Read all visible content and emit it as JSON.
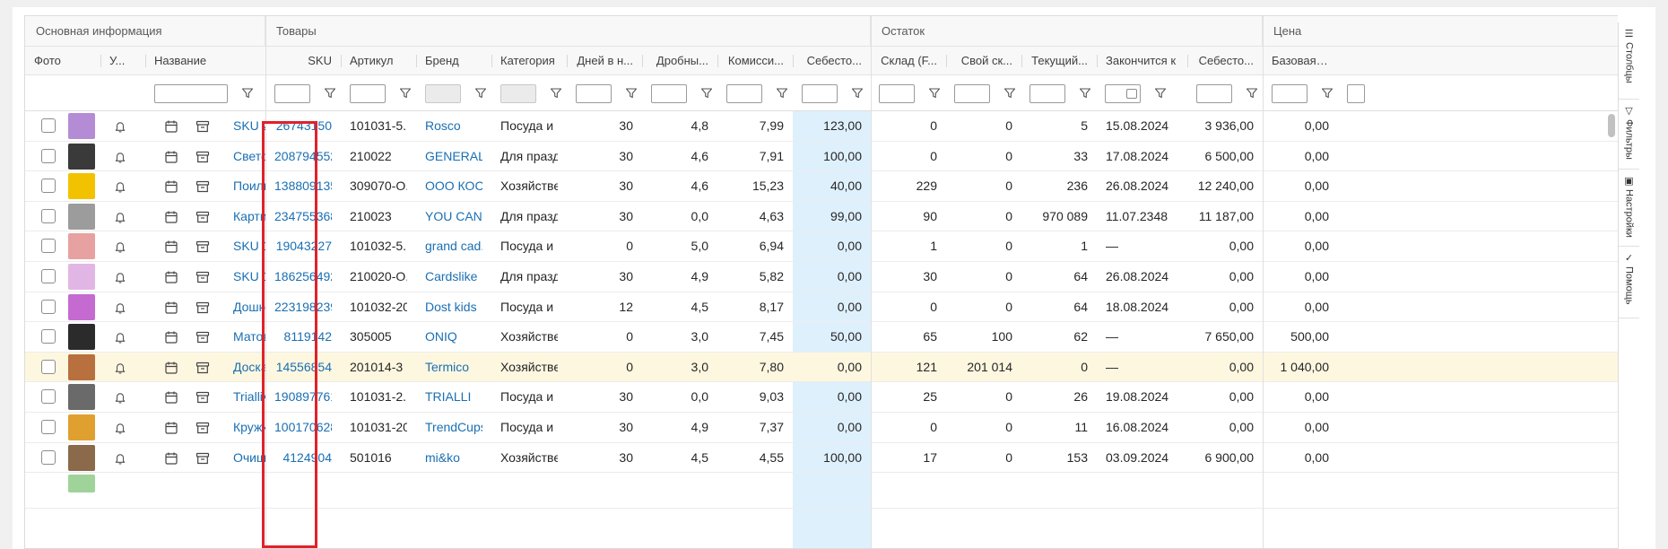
{
  "groups": {
    "main": "Основная информация",
    "goods": "Товары",
    "stock": "Остаток",
    "price": "Цена"
  },
  "columns": {
    "photo": "Фото",
    "notify": "У...",
    "name": "Название",
    "sku": "SKU",
    "article": "Артикул",
    "brand": "Бренд",
    "category": "Категория",
    "days": "Дней в н...",
    "fraction": "Дробны...",
    "commission": "Комисси...",
    "cost": "Себесто...",
    "warehouse": "Склад (F...",
    "own_stock": "Свой ск...",
    "current": "Текущий...",
    "ends": "Закончится к",
    "cost2": "Себесто...",
    "base_price": "Базовая, ₽"
  },
  "side_tabs": {
    "columns": "Столбцы",
    "filters": "Фильтры",
    "settings": "Настройки",
    "help": "Помощь"
  },
  "rows": [
    {
      "name": "SKU 26",
      "sku": "26743150",
      "article": "101031-5...",
      "brand": "Rosco",
      "category": "Посуда и ...",
      "days": "30",
      "fraction": "4,8",
      "commission": "7,99",
      "cost": "123,00",
      "warehouse": "0",
      "own": "0",
      "current": "5",
      "ends": "15.08.2024",
      "cost2": "3 936,00",
      "base": "0,00",
      "thumb": "#b48cd6"
    },
    {
      "name": "Светод",
      "sku": "208794552",
      "article": "210022",
      "brand": "GENERAL.",
      "category": "Для празд...",
      "days": "30",
      "fraction": "4,6",
      "commission": "7,91",
      "cost": "100,00",
      "warehouse": "0",
      "own": "0",
      "current": "33",
      "ends": "17.08.2024",
      "cost2": "6 500,00",
      "base": "0,00",
      "thumb": "#3a3a3a"
    },
    {
      "name": "Поилы",
      "sku": "138809135",
      "article": "309070-О...",
      "brand": "ООО КОС",
      "category": "Хозяйстве...",
      "days": "30",
      "fraction": "4,6",
      "commission": "15,23",
      "cost": "40,00",
      "warehouse": "229",
      "own": "0",
      "current": "236",
      "ends": "26.08.2024",
      "cost2": "12 240,00",
      "base": "0,00",
      "thumb": "#f2c200"
    },
    {
      "name": "Картин",
      "sku": "234755368",
      "article": "210023",
      "brand": "YOU CAN ...",
      "category": "Для празд...",
      "days": "30",
      "fraction": "0,0",
      "commission": "4,63",
      "cost": "99,00",
      "warehouse": "90",
      "own": "0",
      "current": "970 089",
      "ends": "11.07.2348",
      "cost2": "11 187,00",
      "base": "0,00",
      "thumb": "#9c9c9c"
    },
    {
      "name": "SKU 19",
      "sku": "19043227",
      "article": "101032-5...",
      "brand": "grand cad...",
      "category": "Посуда и ...",
      "days": "0",
      "fraction": "5,0",
      "commission": "6,94",
      "cost": "0,00",
      "warehouse": "1",
      "own": "0",
      "current": "1",
      "ends": "—",
      "cost2": "0,00",
      "base": "0,00",
      "thumb": "#e7a1a1"
    },
    {
      "name": "SKU 18",
      "sku": "186256492",
      "article": "210020-О...",
      "brand": "Cardslike",
      "category": "Для празд...",
      "days": "30",
      "fraction": "4,9",
      "commission": "5,82",
      "cost": "0,00",
      "warehouse": "30",
      "own": "0",
      "current": "64",
      "ends": "26.08.2024",
      "cost2": "0,00",
      "base": "0,00",
      "thumb": "#e2b6e4"
    },
    {
      "name": "Дошко",
      "sku": "223198239",
      "article": "101032-20",
      "brand": "Dost kids",
      "category": "Посуда и ...",
      "days": "12",
      "fraction": "4,5",
      "commission": "8,17",
      "cost": "0,00",
      "warehouse": "0",
      "own": "0",
      "current": "64",
      "ends": "18.08.2024",
      "cost2": "0,00",
      "base": "0,00",
      "thumb": "#c56ad1"
    },
    {
      "name": "Матов",
      "sku": "8119142",
      "article": "305005",
      "brand": "ONIQ",
      "category": "Хозяйстве...",
      "days": "0",
      "fraction": "3,0",
      "commission": "7,45",
      "cost": "50,00",
      "warehouse": "65",
      "own": "100",
      "current": "62",
      "ends": "—",
      "cost2": "7 650,00",
      "base": "500,00",
      "thumb": "#2b2b2b"
    },
    {
      "name": "Доска",
      "sku": "14556854",
      "article": "201014-3",
      "brand": "Termico",
      "category": "Хозяйстве...",
      "days": "0",
      "fraction": "3,0",
      "commission": "7,80",
      "cost": "0,00",
      "warehouse": "121",
      "own": "201 014",
      "current": "0",
      "ends": "—",
      "cost2": "0,00",
      "base": "1 040,00",
      "thumb": "#b8703e",
      "highlight": true
    },
    {
      "name": "TrialliAl",
      "sku": "190897761",
      "article": "101031-2...",
      "brand": "TRIALLI",
      "category": "Посуда и ...",
      "days": "30",
      "fraction": "0,0",
      "commission": "9,03",
      "cost": "0,00",
      "warehouse": "25",
      "own": "0",
      "current": "26",
      "ends": "19.08.2024",
      "cost2": "0,00",
      "base": "0,00",
      "thumb": "#6a6a6a"
    },
    {
      "name": "Кружка",
      "sku": "100170628",
      "article": "101031-20",
      "brand": "TrendCups",
      "category": "Посуда и ...",
      "days": "30",
      "fraction": "4,9",
      "commission": "7,37",
      "cost": "0,00",
      "warehouse": "0",
      "own": "0",
      "current": "11",
      "ends": "16.08.2024",
      "cost2": "0,00",
      "base": "0,00",
      "thumb": "#e0a030"
    },
    {
      "name": "Очища",
      "sku": "4124904",
      "article": "501016",
      "brand": "mi&ko",
      "category": "Хозяйстве...",
      "days": "30",
      "fraction": "4,5",
      "commission": "4,55",
      "cost": "100,00",
      "warehouse": "17",
      "own": "0",
      "current": "153",
      "ends": "03.09.2024",
      "cost2": "6 900,00",
      "base": "0,00",
      "thumb": "#8a6a4a"
    }
  ],
  "colors": {
    "link": "#1a6fb3",
    "cost_column_bg": "#dff0fd",
    "highlight_row": "#fdf7e0",
    "annotation_box": "#e0212b"
  }
}
